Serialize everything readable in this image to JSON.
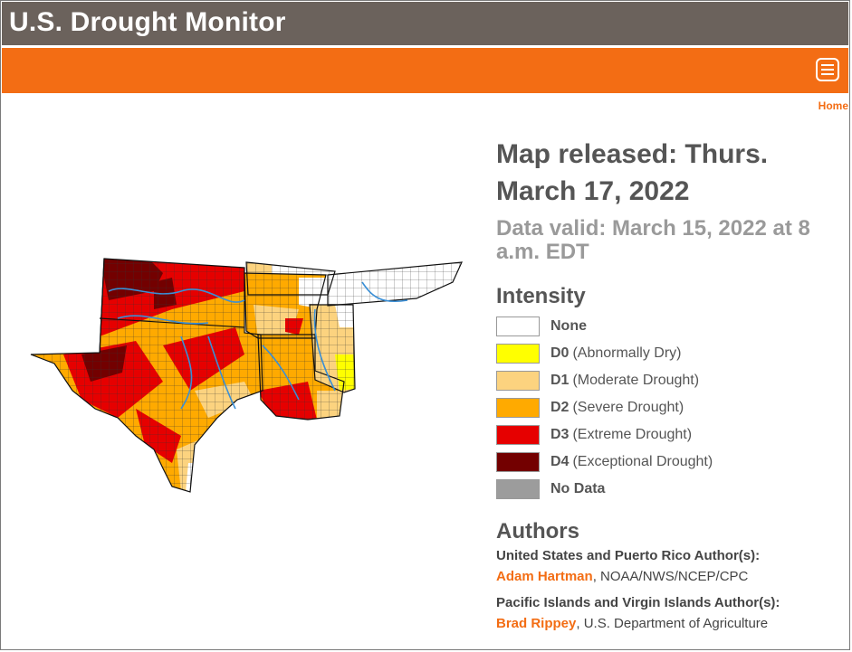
{
  "header": {
    "title": "U.S. Drought Monitor"
  },
  "nav": {
    "breadcrumb": "Home",
    "menu_icon": "hamburger-menu-icon"
  },
  "map": {
    "released": "Map released: Thurs. March 17, 2022",
    "valid": "Data valid: March 15, 2022 at 8 a.m. EDT"
  },
  "legend": {
    "title": "Intensity",
    "items": [
      {
        "code": "None",
        "desc": "",
        "color": "#ffffff"
      },
      {
        "code": "D0",
        "desc": "(Abnormally Dry)",
        "color": "#ffff00"
      },
      {
        "code": "D1",
        "desc": "(Moderate Drought)",
        "color": "#fcd37f"
      },
      {
        "code": "D2",
        "desc": "(Severe Drought)",
        "color": "#ffaa00"
      },
      {
        "code": "D3",
        "desc": "(Extreme Drought)",
        "color": "#e60000"
      },
      {
        "code": "D4",
        "desc": "(Exceptional Drought)",
        "color": "#730000"
      },
      {
        "code": "No Data",
        "desc": "",
        "color": "#9c9c9c"
      }
    ]
  },
  "authors": {
    "title": "Authors",
    "groups": [
      {
        "heading": "United States and Puerto Rico Author(s):",
        "name": "Adam Hartman",
        "affiliation": ", NOAA/NWS/NCEP/CPC"
      },
      {
        "heading": "Pacific Islands and Virgin Islands Author(s):",
        "name": "Brad Rippey",
        "affiliation": ", U.S. Department of Agriculture"
      }
    ]
  },
  "colors": {
    "header_bg": "#6b625c",
    "accent": "#f36d14",
    "text": "#555555",
    "muted": "#9a9a9a"
  }
}
